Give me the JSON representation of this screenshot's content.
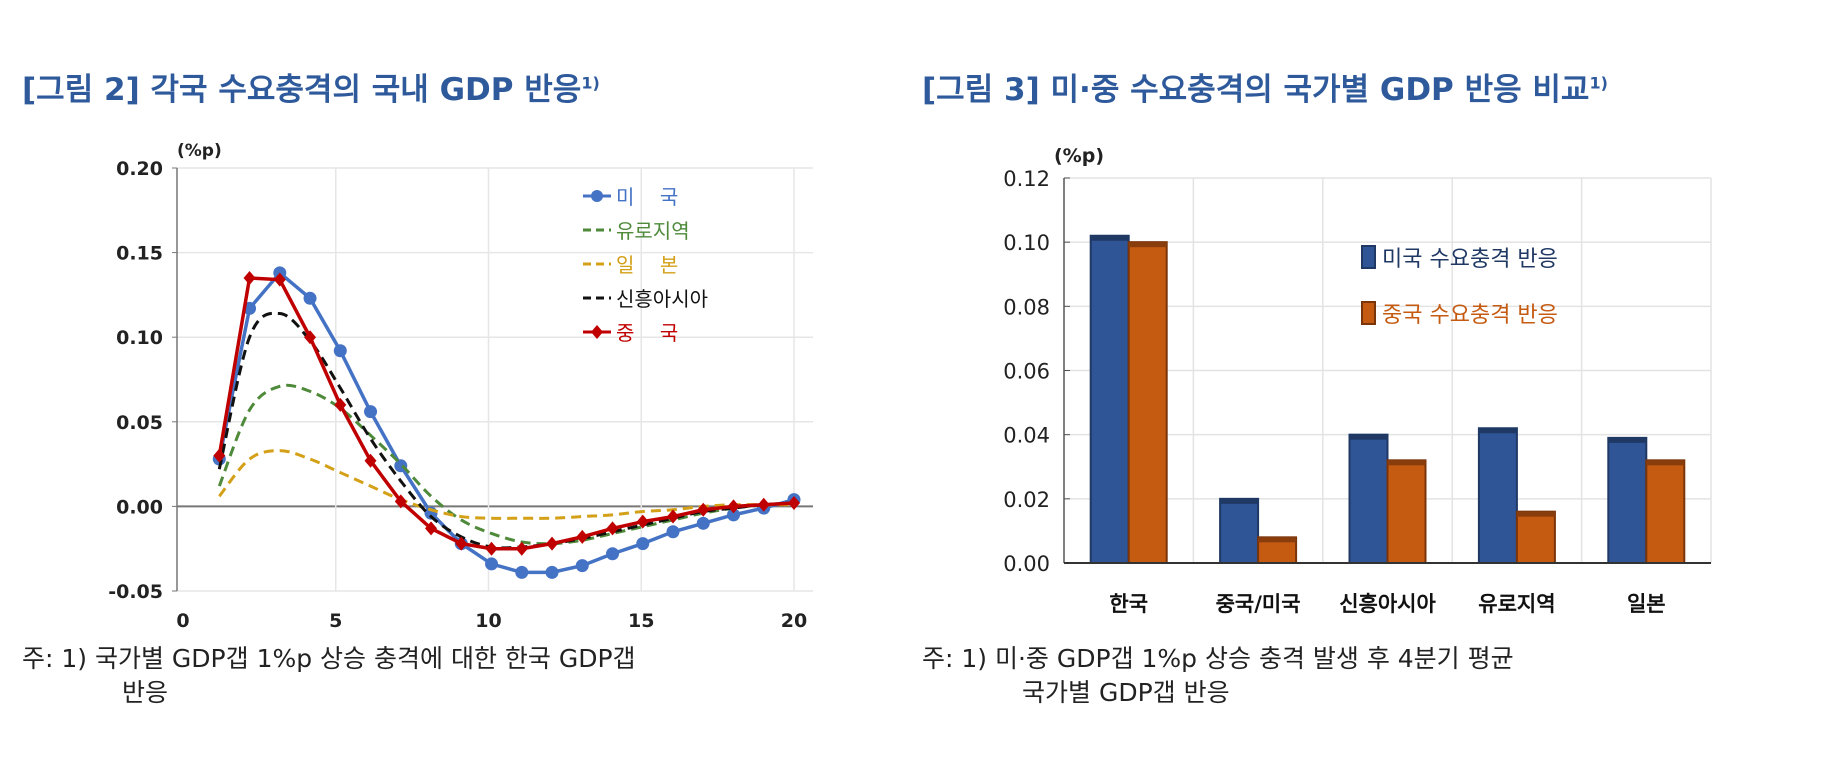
{
  "figure2": {
    "title": "[그림 2] 각국 수요충격의 국내 GDP 반응",
    "title_sup": "1)",
    "note_line1": "주: 1) 국가별 GDP갭 1%p 상승 충격에 대한 한국 GDP갭",
    "note_line2": "반응"
  },
  "figure3": {
    "title": "[그림 3] 미·중 수요충격의 국가별 GDP 반응 비교",
    "title_sup": "1)",
    "note_line1": "주: 1) 미·중 GDP갭 1%p 상승 충격 발생 후 4분기 평균",
    "note_line2": "국가별 GDP갭 반응"
  },
  "chart_data": [
    {
      "type": "line",
      "ylabel": "(%p)",
      "xlim": [
        0,
        20
      ],
      "ylim": [
        -0.05,
        0.2
      ],
      "xticks": [
        "0",
        "5",
        "10",
        "15",
        "20"
      ],
      "yticks": [
        "0.20",
        "0.15",
        "0.10",
        "0.05",
        "0.00",
        "-0.05"
      ],
      "grid": true,
      "legend_placement": "top-right",
      "x": [
        1,
        2,
        3,
        4,
        5,
        6,
        7,
        8,
        9,
        10,
        11,
        12,
        13,
        14,
        15,
        16,
        17,
        18,
        19,
        20
      ],
      "series": [
        {
          "name": "미    국",
          "color": "#4472c4",
          "style": "solid-circle",
          "values": [
            0.028,
            0.117,
            0.138,
            0.123,
            0.092,
            0.056,
            0.024,
            -0.004,
            -0.022,
            -0.034,
            -0.039,
            -0.039,
            -0.035,
            -0.028,
            -0.022,
            -0.015,
            -0.01,
            -0.005,
            -0.001,
            0.004
          ]
        },
        {
          "name": "유로지역",
          "color": "#4e8a3a",
          "style": "dashed",
          "values": [
            0.012,
            0.057,
            0.071,
            0.068,
            0.058,
            0.042,
            0.025,
            0.006,
            -0.008,
            -0.016,
            -0.021,
            -0.022,
            -0.02,
            -0.016,
            -0.012,
            -0.008,
            -0.004,
            -0.001,
            0.001,
            0.002
          ]
        },
        {
          "name": "일    본",
          "color": "#d4a017",
          "style": "dashed",
          "values": [
            0.006,
            0.028,
            0.033,
            0.028,
            0.02,
            0.012,
            0.004,
            -0.002,
            -0.006,
            -0.007,
            -0.007,
            -0.007,
            -0.006,
            -0.005,
            -0.003,
            -0.002,
            0.0,
            0.001,
            0.001,
            0.001
          ]
        },
        {
          "name": "신흥아시아",
          "color": "#111111",
          "style": "dashed",
          "values": [
            0.022,
            0.1,
            0.114,
            0.098,
            0.07,
            0.04,
            0.015,
            -0.006,
            -0.018,
            -0.024,
            -0.024,
            -0.022,
            -0.019,
            -0.015,
            -0.011,
            -0.007,
            -0.003,
            -0.001,
            0.001,
            0.002
          ]
        },
        {
          "name": "중    국",
          "color": "#c00000",
          "style": "solid-diamond",
          "values": [
            0.03,
            0.135,
            0.134,
            0.1,
            0.06,
            0.027,
            0.003,
            -0.013,
            -0.022,
            -0.025,
            -0.025,
            -0.022,
            -0.018,
            -0.013,
            -0.009,
            -0.006,
            -0.002,
            0.0,
            0.001,
            0.002
          ]
        }
      ]
    },
    {
      "type": "bar",
      "ylabel": "(%p)",
      "ylim": [
        0,
        0.12
      ],
      "yticks": [
        "0.12",
        "0.10",
        "0.08",
        "0.06",
        "0.04",
        "0.02",
        "0.00"
      ],
      "grid": true,
      "legend_placement": "top-right",
      "categories": [
        "한국",
        "중국/미국",
        "신흥아시아",
        "유로지역",
        "일본"
      ],
      "series": [
        {
          "name": "미국 수요충격 반응",
          "color": "#2f5597",
          "values": [
            0.102,
            0.02,
            0.04,
            0.042,
            0.039
          ]
        },
        {
          "name": "중국 수요충격 반응",
          "color": "#c55a11",
          "values": [
            0.1,
            0.008,
            0.032,
            0.016,
            0.032
          ]
        }
      ]
    }
  ]
}
